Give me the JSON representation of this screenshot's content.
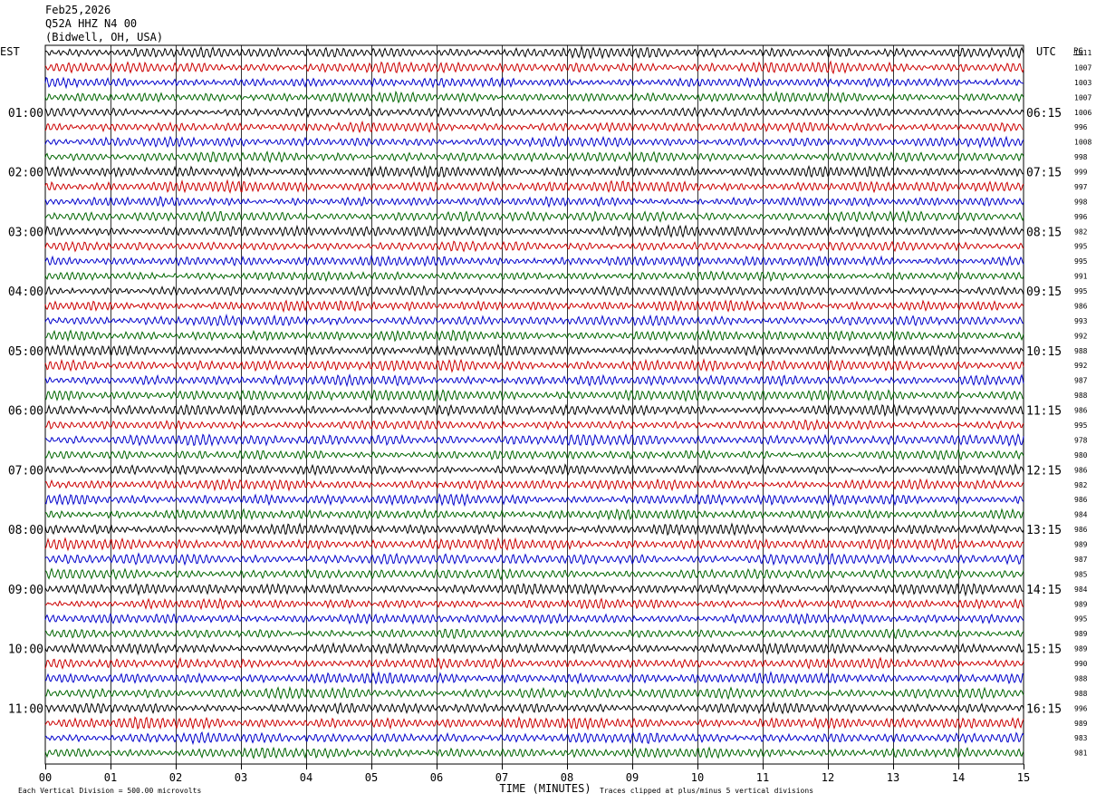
{
  "header": {
    "date": "Feb25,2026",
    "station": "Q52A HHZ N4 00",
    "location": "(Bidwell, OH, USA)"
  },
  "left_timezone": "EST",
  "right_timezone": "UTC",
  "corner_label": "PG",
  "footer": {
    "scale_note": "Each Vertical Division =  500.00 microvolts",
    "axis_title": "TIME (MINUTES)",
    "clip_note": "Traces clipped at plus/minus 5 vertical divisions"
  },
  "colors": {
    "trace_cycle": [
      "#000000",
      "#cc0000",
      "#0000cc",
      "#006600"
    ],
    "grid": "#000000"
  },
  "chart_data": {
    "type": "line",
    "xlabel": "TIME (MINUTES)",
    "xlim": [
      0,
      15
    ],
    "x_ticks": [
      "00",
      "01",
      "02",
      "03",
      "04",
      "05",
      "06",
      "07",
      "08",
      "09",
      "10",
      "11",
      "12",
      "13",
      "14",
      "15"
    ],
    "rows_per_hour": 4,
    "hour_labels_est": [
      "01:00",
      "02:00",
      "03:00",
      "04:00",
      "05:00",
      "06:00",
      "07:00",
      "08:00",
      "09:00",
      "10:00",
      "11:00"
    ],
    "hour_labels_utc": [
      "06:15",
      "07:15",
      "08:15",
      "09:15",
      "10:15",
      "11:15",
      "12:15",
      "13:15",
      "14:15",
      "15:15",
      "16:15"
    ],
    "row_values": [
      "1011",
      "1007",
      "1003",
      "1007",
      "1006",
      "996",
      "1008",
      "998",
      "999",
      "997",
      "998",
      "996",
      "982",
      "995",
      "995",
      "991",
      "995",
      "986",
      "993",
      "992",
      "988",
      "992",
      "987",
      "988",
      "986",
      "995",
      "978",
      "980",
      "986",
      "982",
      "986",
      "984",
      "986",
      "989",
      "987",
      "985",
      "984",
      "989",
      "995",
      "989",
      "989",
      "990",
      "988",
      "988",
      "996",
      "989",
      "983",
      "981"
    ],
    "last_row_data_end_minute": 15
  }
}
